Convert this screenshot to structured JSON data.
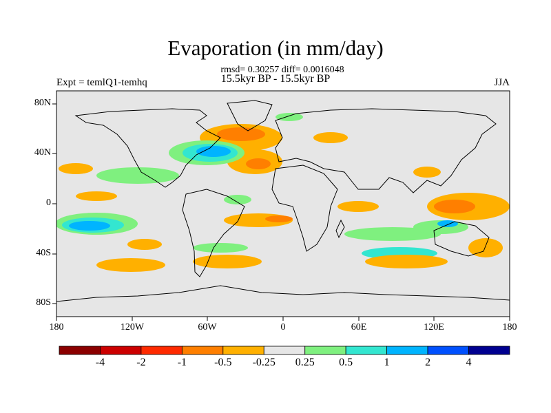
{
  "title": "Evaporation (in mm/day)",
  "stats": "rmsd= 0.30257 diff= 0.0016048",
  "period": "15.5kyr BP - 15.5kyr BP",
  "expt": "Expt = temlQ1-temhq",
  "season": "JJA",
  "lat_labels": [
    "80N",
    "40N",
    "0",
    "40S",
    "80S"
  ],
  "lon_labels": [
    "180",
    "120W",
    "60W",
    "0",
    "60E",
    "120E",
    "180"
  ],
  "colorbar": {
    "colors": [
      "#8b0000",
      "#cc0000",
      "#ff2a00",
      "#ff7f00",
      "#ffb000",
      "#e6e6e6",
      "#7ff07f",
      "#33e6d0",
      "#00b4ff",
      "#0050ff",
      "#000090"
    ],
    "labels": [
      "-4",
      "-2",
      "-1",
      "-0.5",
      "-0.25",
      "0.25",
      "0.5",
      "1",
      "2",
      "4"
    ]
  }
}
